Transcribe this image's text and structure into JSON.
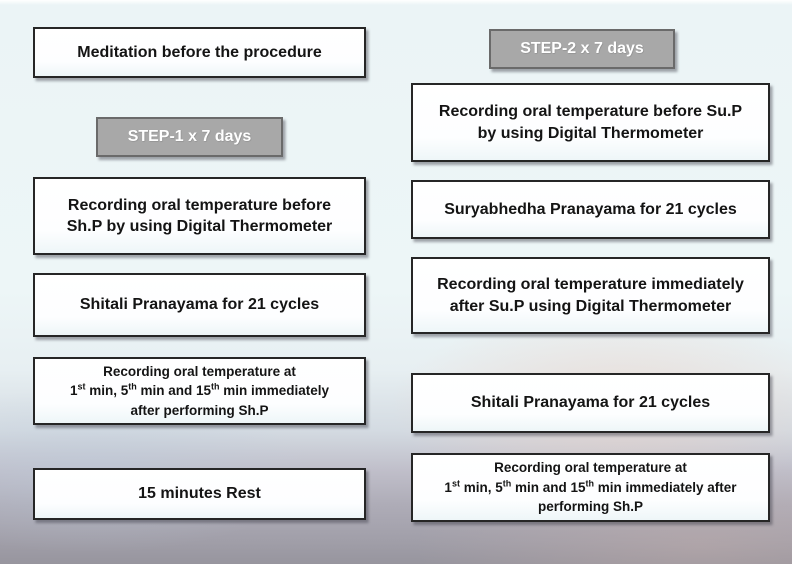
{
  "slide": {
    "background_top_color": "#edf6f7",
    "background_bottom_color": "#97959e",
    "background_pink_tint": "#ebd0c5"
  },
  "colors": {
    "box_fill": "#ffffff",
    "box_border": "#262626",
    "box_text": "#141414",
    "step_fill": "#a8a8a8",
    "step_border": "#6a6a6a",
    "step_text": "#ffffff"
  },
  "left": {
    "meditation": "Meditation before the procedure",
    "step_label": "STEP-1 x 7 days",
    "record_before": {
      "line1": "Recording oral temperature before",
      "line2": "Sh.P by using Digital Thermometer"
    },
    "shitali": "Shitali Pranayama for 21 cycles",
    "timepoints": {
      "line1": "Recording oral temperature at",
      "seg1": "1",
      "sup1": "st",
      "seg2": " min, 5",
      "sup2": "th",
      "seg3": " min and 15",
      "sup3": "th",
      "seg4": " min immediately",
      "line3": "after performing Sh.P"
    },
    "rest": "15 minutes Rest"
  },
  "right": {
    "step_label": "STEP-2 x 7 days",
    "record_before": {
      "line1": "Recording oral temperature before Su.P",
      "line2": "by using Digital Thermometer"
    },
    "suryabhedha": "Suryabhedha Pranayama for 21 cycles",
    "record_after": {
      "line1": "Recording oral temperature immediately",
      "line2": "after Su.P using Digital Thermometer"
    },
    "shitali": "Shitali Pranayama for 21 cycles",
    "timepoints": {
      "line1": "Recording oral temperature at",
      "seg1": "1",
      "sup1": "st",
      "seg2": " min, 5",
      "sup2": "th",
      "seg3": " min and 15",
      "sup3": "th",
      "seg4": " min immediately after",
      "line3": "performing Sh.P"
    }
  }
}
